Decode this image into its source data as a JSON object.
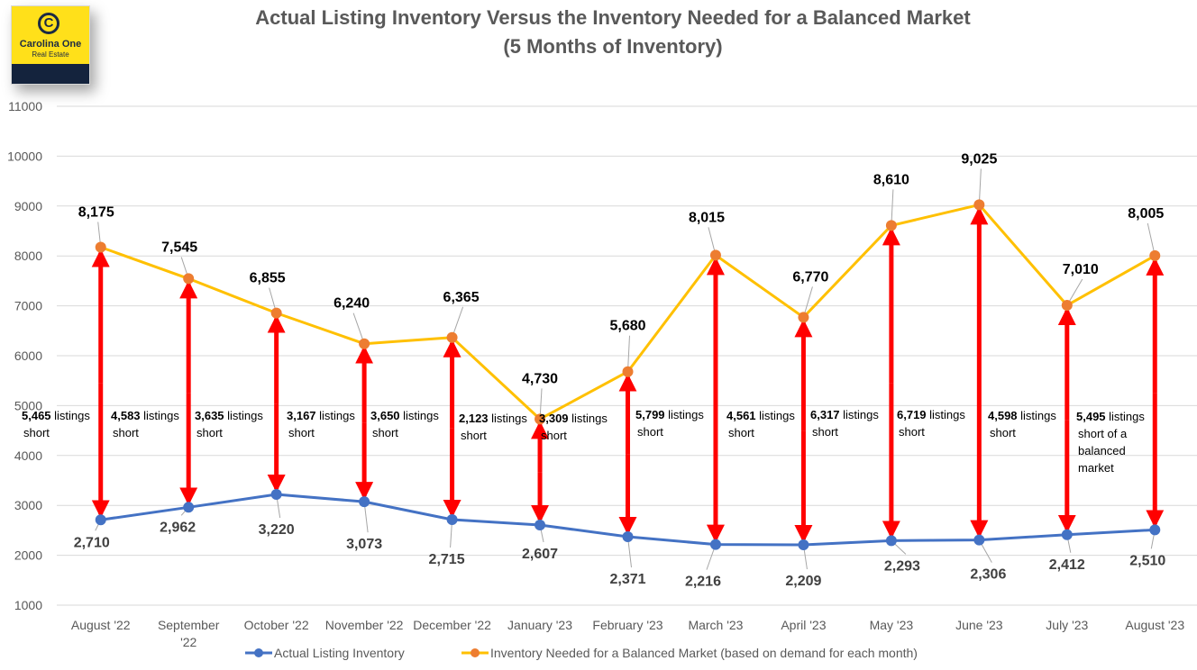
{
  "logo": {
    "mark": "C",
    "name": "Carolina One",
    "sub": "Real Estate"
  },
  "chart_data": {
    "type": "line",
    "title": "Actual Listing Inventory Versus the Inventory Needed for a Balanced Market",
    "subtitle": "(5 Months of Inventory)",
    "xlabel": "",
    "ylabel": "",
    "ylim": [
      1000,
      11000
    ],
    "yticks": [
      1000,
      2000,
      3000,
      4000,
      5000,
      6000,
      7000,
      8000,
      9000,
      10000,
      11000
    ],
    "grid": true,
    "legend_position": "bottom",
    "categories": [
      "August '22",
      "September '22",
      "October '22",
      "November '22",
      "December '22",
      "January '23",
      "February '23",
      "March '23",
      "April '23",
      "May '23",
      "June '23",
      "July '23",
      "August '23"
    ],
    "series": [
      {
        "name": "Actual Listing Inventory",
        "color": "#4472c4",
        "values": [
          2710,
          2962,
          3220,
          3073,
          2715,
          2607,
          2371,
          2216,
          2209,
          2293,
          2306,
          2412,
          2510
        ],
        "labels": [
          "2,710",
          "2,962",
          "3,220",
          "3,073",
          "2,715",
          "2,607",
          "2,371",
          "2,216",
          "2,209",
          "2,293",
          "2,306",
          "2,412",
          "2,510"
        ]
      },
      {
        "name": "Inventory Needed for a Balanced Market (based on demand for each month)",
        "color": "#ffc000",
        "marker_color": "#ed7d31",
        "values": [
          8175,
          7545,
          6855,
          6240,
          6365,
          4730,
          5680,
          8015,
          6770,
          8610,
          9025,
          7010,
          8005
        ],
        "labels": [
          "8,175",
          "7,545",
          "6,855",
          "6,240",
          "6,365",
          "4,730",
          "5,680",
          "8,015",
          "6,770",
          "8,610",
          "9,025",
          "7,010",
          "8,005"
        ]
      }
    ],
    "annotations": [
      {
        "value": "5,465",
        "text": [
          "listings",
          "short"
        ]
      },
      {
        "value": "4,583",
        "text": [
          "listings",
          "short"
        ]
      },
      {
        "value": "3,635",
        "text": [
          "listings",
          "short"
        ]
      },
      {
        "value": "3,167",
        "text": [
          "listings",
          "short"
        ]
      },
      {
        "value": "3,650",
        "text": [
          "listings",
          "short"
        ]
      },
      {
        "value": "2,123",
        "text": [
          "listings",
          "short"
        ]
      },
      {
        "value": "3,309",
        "text": [
          "listings",
          "short"
        ]
      },
      {
        "value": "5,799",
        "text": [
          "listings",
          "short"
        ]
      },
      {
        "value": "4,561",
        "text": [
          "listings",
          "short"
        ]
      },
      {
        "value": "6,317",
        "text": [
          "listings",
          "short"
        ]
      },
      {
        "value": "6,719",
        "text": [
          "listings",
          "short"
        ]
      },
      {
        "value": "4,598",
        "text": [
          "listings",
          "short"
        ]
      },
      {
        "value": "5,495",
        "text": [
          "listings",
          "short of a",
          "balanced",
          "market"
        ]
      }
    ],
    "arrow_color": "#ff0000"
  }
}
